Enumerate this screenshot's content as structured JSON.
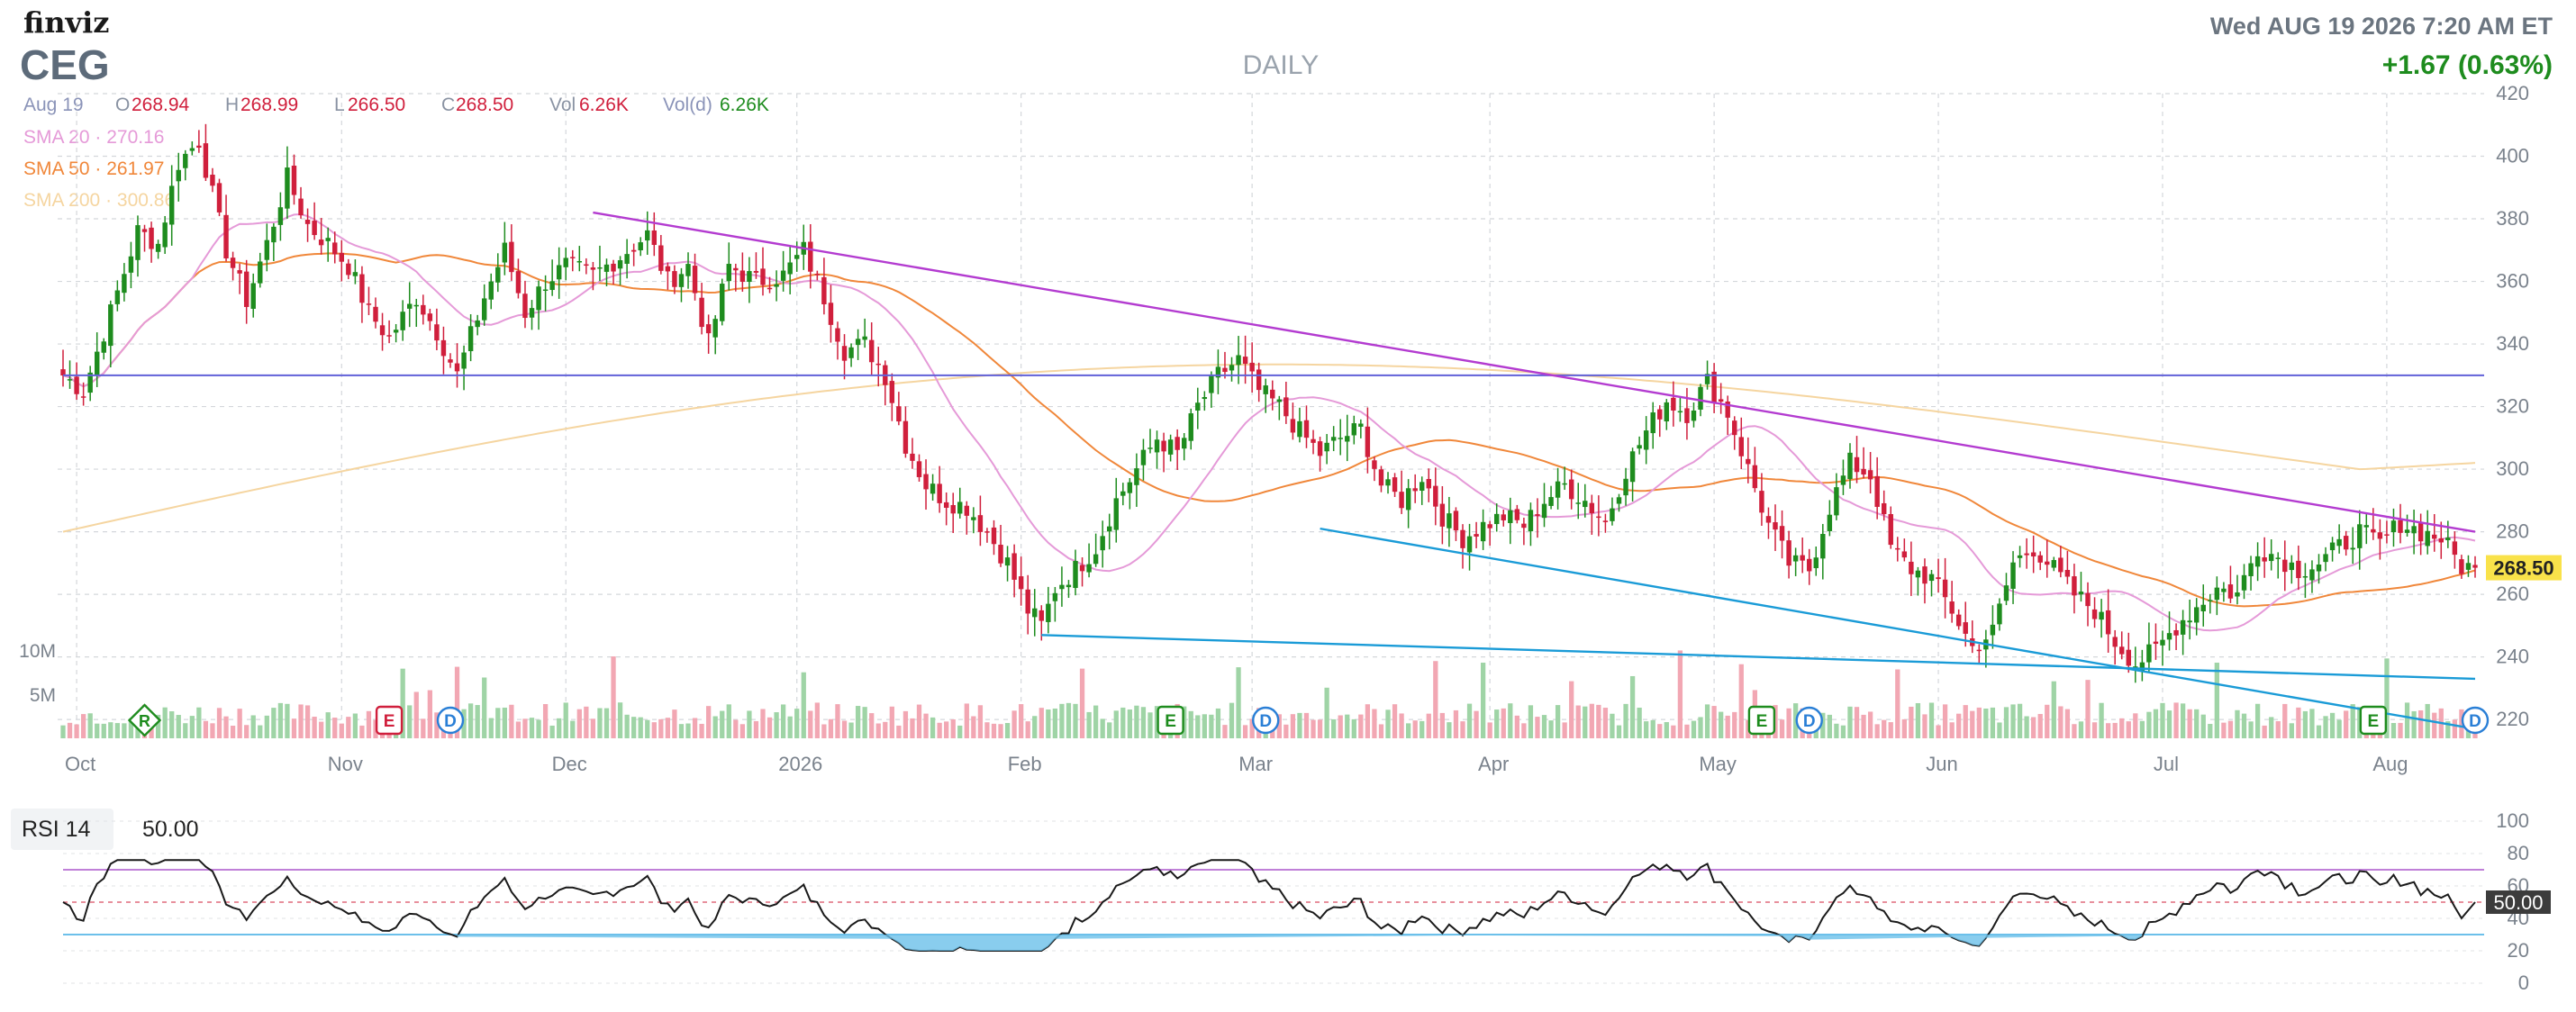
{
  "header": {
    "logo": "finviz",
    "ticker": "CEG",
    "timeframe": "DAILY",
    "datetime": "Wed AUG 19 2026 7:20 AM ET",
    "change": "+1.67 (0.63%)"
  },
  "ohlc_bar": {
    "date": "Aug 19",
    "o_label": "O",
    "o_value": "268.94",
    "h_label": "H",
    "h_value": "268.99",
    "l_label": "L",
    "l_value": "266.50",
    "c_label": "C",
    "c_value": "268.50",
    "vol_label": "Vol",
    "vol_value": "6.26K",
    "vold_label": "Vol(d)",
    "vold_value": "6.26K"
  },
  "indicators": {
    "sma20_label": "SMA 20",
    "sma20_value": "270.16",
    "sma50_label": "SMA 50",
    "sma50_value": "261.97",
    "sma200_label": "SMA 200",
    "sma200_value": "300.86"
  },
  "rsi": {
    "label": "RSI 14",
    "value": "50.00",
    "badge": "50.00",
    "ticks": [
      "100",
      "80",
      "60",
      "40",
      "20",
      "0"
    ]
  },
  "volume_ticks": [
    "10M",
    "5M"
  ],
  "colors": {
    "up": "#1e8c1e",
    "down": "#d01f3c",
    "sma20": "#e59ad8",
    "sma50": "#f0873a",
    "sma200": "#f5d5a0",
    "trend_magenta": "#b33bd0",
    "trend_blue": "#1a9bd7",
    "horizontal": "#6060d8",
    "price_badge": "#f9e24a",
    "rsi_badge": "#3c3c3c"
  },
  "chart_data": {
    "type": "candlestick",
    "y_ticks": [
      "420",
      "400",
      "380",
      "360",
      "340",
      "320",
      "300",
      "280",
      "260",
      "240",
      "220"
    ],
    "ylim": [
      214,
      420
    ],
    "last_price": "268.50",
    "horizontal_level": 330,
    "x_labels": [
      "Oct",
      "Nov",
      "Dec",
      "2026",
      "Feb",
      "Mar",
      "Apr",
      "May",
      "Jun",
      "Jul",
      "Aug"
    ],
    "x_label_bar_index": [
      2,
      41,
      74,
      108,
      141,
      175,
      210,
      243,
      276,
      309,
      342
    ],
    "earnings_markers": [
      {
        "type": "R",
        "bar": 12
      },
      {
        "type": "E",
        "bar": 48
      },
      {
        "type": "D",
        "bar": 57
      },
      {
        "type": "E",
        "bar": 163
      },
      {
        "type": "D",
        "bar": 177
      },
      {
        "type": "E",
        "bar": 250
      },
      {
        "type": "D",
        "bar": 257
      },
      {
        "type": "E",
        "bar": 340
      },
      {
        "type": "D",
        "bar": 355
      }
    ],
    "bar_count": 356,
    "anchors": [
      [
        0,
        330
      ],
      [
        3,
        325
      ],
      [
        7,
        350
      ],
      [
        11,
        376
      ],
      [
        14,
        372
      ],
      [
        17,
        398
      ],
      [
        20,
        405
      ],
      [
        24,
        370
      ],
      [
        27,
        354
      ],
      [
        30,
        372
      ],
      [
        33,
        393
      ],
      [
        36,
        378
      ],
      [
        39,
        372
      ],
      [
        42,
        365
      ],
      [
        45,
        350
      ],
      [
        48,
        342
      ],
      [
        52,
        355
      ],
      [
        55,
        344
      ],
      [
        58,
        330
      ],
      [
        62,
        355
      ],
      [
        65,
        370
      ],
      [
        68,
        350
      ],
      [
        71,
        360
      ],
      [
        74,
        365
      ],
      [
        78,
        362
      ],
      [
        82,
        368
      ],
      [
        86,
        375
      ],
      [
        89,
        360
      ],
      [
        92,
        365
      ],
      [
        95,
        340
      ],
      [
        98,
        365
      ],
      [
        102,
        360
      ],
      [
        106,
        362
      ],
      [
        109,
        370
      ],
      [
        112,
        355
      ],
      [
        115,
        338
      ],
      [
        118,
        340
      ],
      [
        121,
        330
      ],
      [
        124,
        308
      ],
      [
        127,
        295
      ],
      [
        130,
        290
      ],
      [
        133,
        288
      ],
      [
        136,
        280
      ],
      [
        139,
        270
      ],
      [
        142,
        255
      ],
      [
        144,
        250
      ],
      [
        146,
        262
      ],
      [
        149,
        268
      ],
      [
        152,
        275
      ],
      [
        155,
        290
      ],
      [
        158,
        300
      ],
      [
        161,
        310
      ],
      [
        164,
        305
      ],
      [
        167,
        320
      ],
      [
        170,
        330
      ],
      [
        173,
        335
      ],
      [
        176,
        325
      ],
      [
        179,
        320
      ],
      [
        182,
        312
      ],
      [
        185,
        305
      ],
      [
        188,
        310
      ],
      [
        191,
        313
      ],
      [
        194,
        295
      ],
      [
        197,
        290
      ],
      [
        200,
        298
      ],
      [
        203,
        285
      ],
      [
        206,
        278
      ],
      [
        209,
        282
      ],
      [
        212,
        285
      ],
      [
        215,
        282
      ],
      [
        218,
        290
      ],
      [
        221,
        295
      ],
      [
        224,
        290
      ],
      [
        227,
        283
      ],
      [
        230,
        300
      ],
      [
        233,
        312
      ],
      [
        236,
        322
      ],
      [
        239,
        318
      ],
      [
        242,
        328
      ],
      [
        245,
        318
      ],
      [
        248,
        300
      ],
      [
        251,
        282
      ],
      [
        254,
        270
      ],
      [
        257,
        268
      ],
      [
        260,
        288
      ],
      [
        263,
        302
      ],
      [
        266,
        298
      ],
      [
        269,
        275
      ],
      [
        272,
        268
      ],
      [
        275,
        265
      ],
      [
        278,
        255
      ],
      [
        281,
        243
      ],
      [
        284,
        248
      ],
      [
        287,
        270
      ],
      [
        290,
        275
      ],
      [
        293,
        268
      ],
      [
        296,
        260
      ],
      [
        299,
        255
      ],
      [
        302,
        245
      ],
      [
        305,
        238
      ],
      [
        308,
        242
      ],
      [
        311,
        250
      ],
      [
        314,
        256
      ],
      [
        317,
        262
      ],
      [
        320,
        260
      ],
      [
        323,
        275
      ],
      [
        326,
        272
      ],
      [
        329,
        268
      ],
      [
        332,
        270
      ],
      [
        335,
        275
      ],
      [
        338,
        280
      ],
      [
        341,
        276
      ],
      [
        344,
        283
      ],
      [
        347,
        280
      ],
      [
        350,
        278
      ],
      [
        353,
        269
      ],
      [
        355,
        268.5
      ]
    ]
  }
}
